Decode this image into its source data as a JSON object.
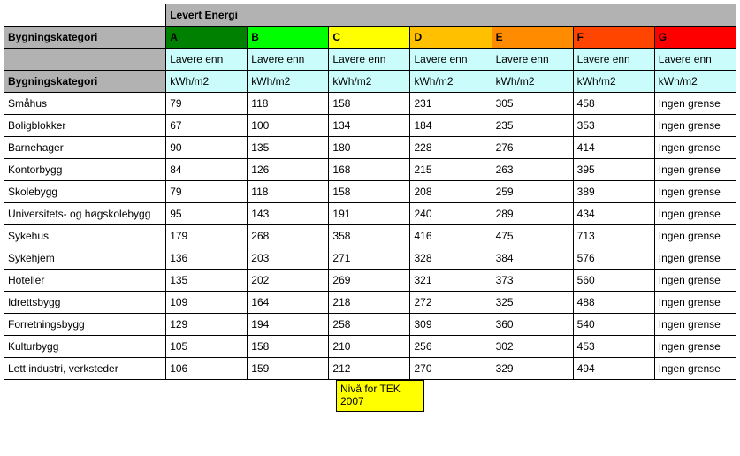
{
  "header": {
    "title": "Levert Energi",
    "category_label": "Bygningskategori",
    "grades": [
      "A",
      "B",
      "C",
      "D",
      "E",
      "F",
      "G"
    ],
    "colors": {
      "category_bg": "#b2b2b2",
      "title_bg": "#b2b2b2",
      "sub_bg": "#cbfcfc",
      "grade_bg": {
        "A": "#008000",
        "B": "#00ff00",
        "C": "#ffff00",
        "D": "#ffc000",
        "E": "#ff8c00",
        "F": "#ff4500",
        "G": "#ff0000"
      }
    },
    "sub1": "Lavere enn",
    "sub2": "kWh/m2"
  },
  "rows": [
    {
      "name": "Småhus",
      "vals": [
        "79",
        "118",
        "158",
        "231",
        "305",
        "458",
        "Ingen grense"
      ]
    },
    {
      "name": "Boligblokker",
      "vals": [
        "67",
        "100",
        "134",
        "184",
        "235",
        "353",
        "Ingen grense"
      ]
    },
    {
      "name": "Barnehager",
      "vals": [
        "90",
        "135",
        "180",
        "228",
        "276",
        "414",
        "Ingen grense"
      ]
    },
    {
      "name": "Kontorbygg",
      "vals": [
        "84",
        "126",
        "168",
        "215",
        "263",
        "395",
        "Ingen grense"
      ]
    },
    {
      "name": "Skolebygg",
      "vals": [
        "79",
        "118",
        "158",
        "208",
        "259",
        "389",
        "Ingen grense"
      ]
    },
    {
      "name": "Universitets- og høgskolebygg",
      "vals": [
        "95",
        "143",
        "191",
        "240",
        "289",
        "434",
        "Ingen grense"
      ]
    },
    {
      "name": "Sykehus",
      "vals": [
        "179",
        "268",
        "358",
        "416",
        "475",
        "713",
        "Ingen grense"
      ]
    },
    {
      "name": "Sykehjem",
      "vals": [
        "136",
        "203",
        "271",
        "328",
        "384",
        "576",
        "Ingen grense"
      ]
    },
    {
      "name": "Hoteller",
      "vals": [
        "135",
        "202",
        "269",
        "321",
        "373",
        "560",
        "Ingen grense"
      ]
    },
    {
      "name": "Idrettsbygg",
      "vals": [
        "109",
        "164",
        "218",
        "272",
        "325",
        "488",
        "Ingen grense"
      ]
    },
    {
      "name": "Forretningsbygg",
      "vals": [
        "129",
        "194",
        "258",
        "309",
        "360",
        "540",
        "Ingen grense"
      ]
    },
    {
      "name": "Kulturbygg",
      "vals": [
        "105",
        "158",
        "210",
        "256",
        "302",
        "453",
        "Ingen grense"
      ]
    },
    {
      "name": "Lett industri, verksteder",
      "vals": [
        "106",
        "159",
        "212",
        "270",
        "329",
        "494",
        "Ingen grense"
      ]
    }
  ],
  "footnote": {
    "text": "Nivå for TEK 2007",
    "bg": "#ffff00"
  },
  "data_row_bg": "#ffffff"
}
